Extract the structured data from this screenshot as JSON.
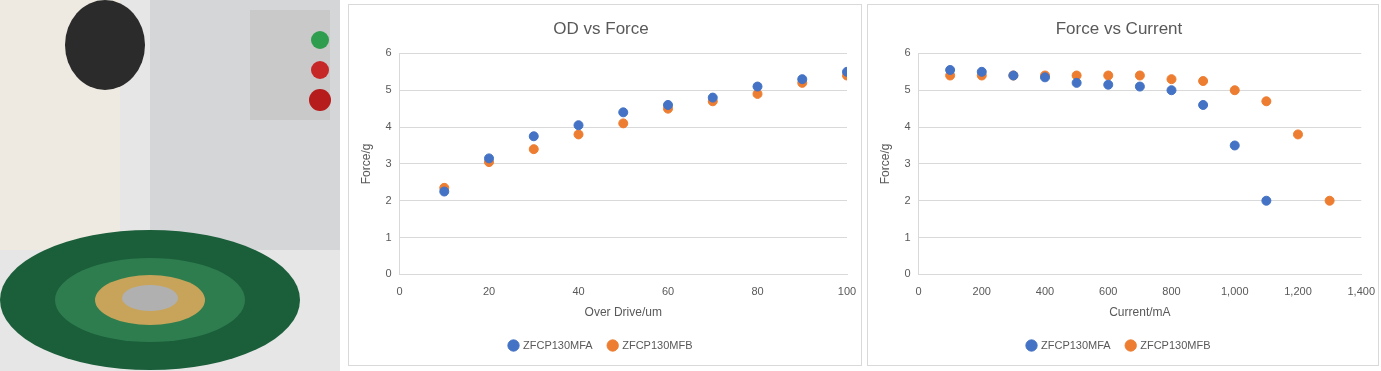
{
  "chart_data": [
    {
      "type": "scatter",
      "title": "OD vs Force",
      "x_label": "Over Drive/um",
      "y_label": "Force/g",
      "xlim": [
        0,
        100
      ],
      "xticks": [
        0,
        20,
        40,
        60,
        80,
        100
      ],
      "ylim": [
        0,
        6
      ],
      "yticks": [
        0,
        1,
        2,
        3,
        4,
        5,
        6
      ],
      "grid": true,
      "legend": "bottom",
      "marker": "circle",
      "series": [
        {
          "name": "ZFCP130MFA",
          "color": "#4472c4",
          "x": [
            10,
            20,
            30,
            40,
            50,
            60,
            70,
            80,
            90,
            100
          ],
          "values": [
            2.25,
            3.15,
            3.75,
            4.05,
            4.4,
            4.6,
            4.8,
            5.1,
            5.3,
            5.5
          ]
        },
        {
          "name": "ZFCP130MFB",
          "color": "#ed7d31",
          "x": [
            10,
            20,
            30,
            40,
            50,
            60,
            70,
            80,
            90,
            100
          ],
          "values": [
            2.35,
            3.05,
            3.4,
            3.8,
            4.1,
            4.5,
            4.7,
            4.9,
            5.2,
            5.4
          ]
        }
      ]
    },
    {
      "type": "scatter",
      "title": "Force vs Current",
      "x_label": "Current/mA",
      "y_label": "Force/g",
      "xlim": [
        0,
        1400
      ],
      "xticks": [
        0,
        200,
        400,
        600,
        800,
        1000,
        1200,
        1400
      ],
      "ylim": [
        0,
        6
      ],
      "yticks": [
        0,
        1,
        2,
        3,
        4,
        5,
        6
      ],
      "grid": true,
      "legend": "bottom",
      "marker": "circle",
      "series": [
        {
          "name": "ZFCP130MFA",
          "color": "#4472c4",
          "x": [
            100,
            200,
            300,
            400,
            500,
            600,
            700,
            800,
            900,
            1000,
            1100
          ],
          "values": [
            5.55,
            5.5,
            5.4,
            5.35,
            5.2,
            5.15,
            5.1,
            5.0,
            4.6,
            3.5,
            2.0
          ]
        },
        {
          "name": "ZFCP130MFB",
          "color": "#ed7d31",
          "x": [
            100,
            200,
            300,
            400,
            500,
            600,
            700,
            800,
            900,
            1000,
            1100,
            1200,
            1300
          ],
          "values": [
            5.4,
            5.4,
            5.4,
            5.4,
            5.4,
            5.4,
            5.4,
            5.3,
            5.25,
            5.0,
            4.7,
            3.8,
            2.0
          ]
        }
      ]
    }
  ]
}
